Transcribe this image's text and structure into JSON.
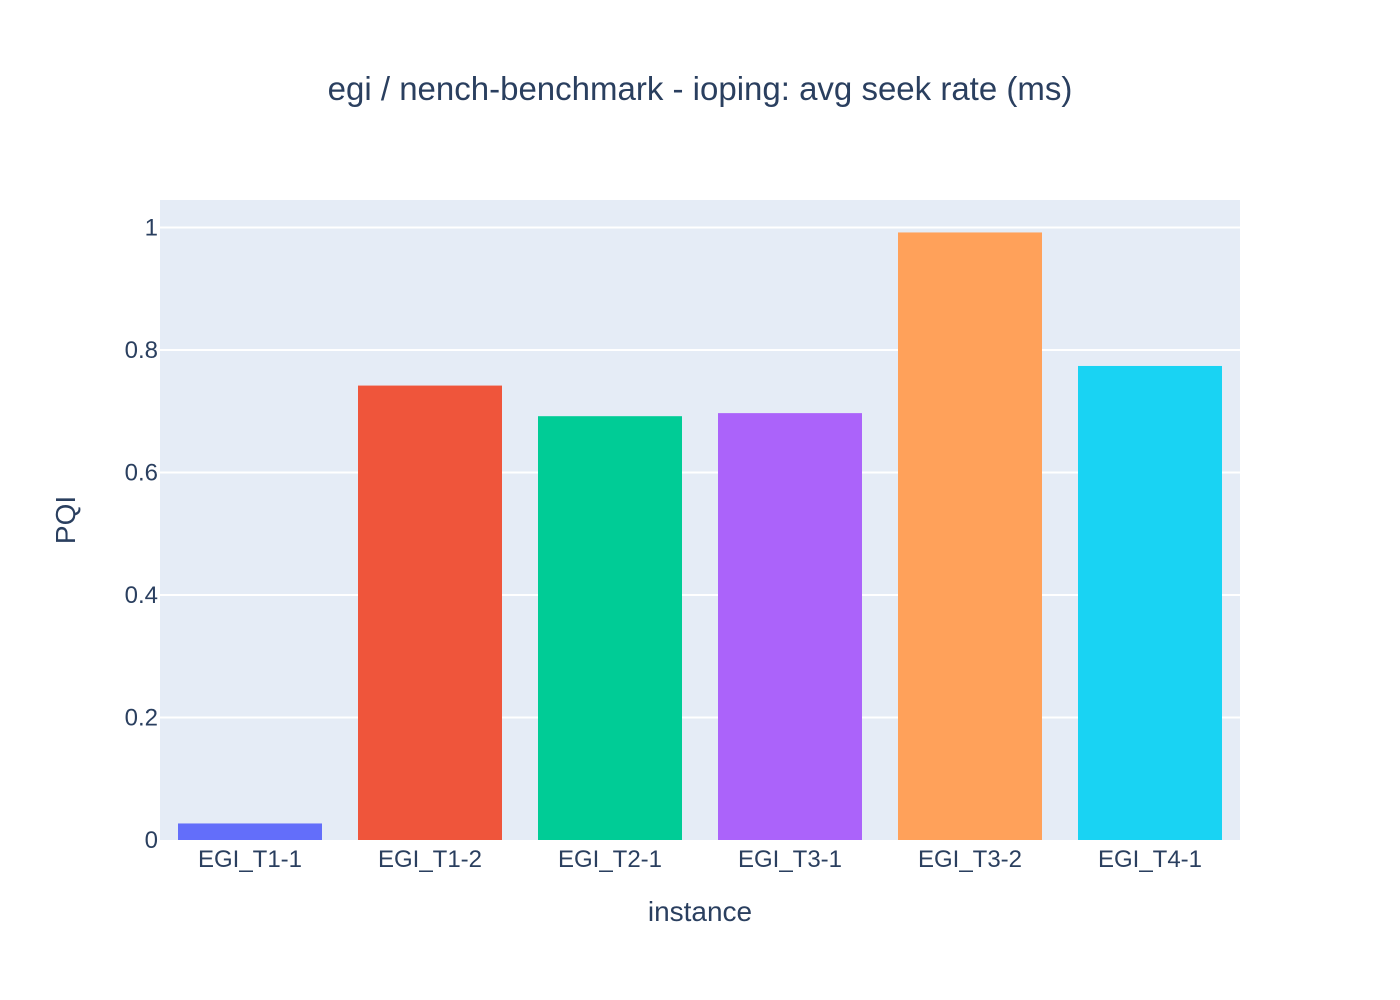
{
  "chart_data": {
    "type": "bar",
    "title": "egi / nench-benchmark - ioping: avg seek rate (ms)",
    "xlabel": "instance",
    "ylabel": "PQI",
    "categories": [
      "EGI_T1-1",
      "EGI_T1-2",
      "EGI_T2-1",
      "EGI_T3-1",
      "EGI_T3-2",
      "EGI_T4-1"
    ],
    "values": [
      0.027,
      0.742,
      0.692,
      0.697,
      0.992,
      0.774
    ],
    "bar_colors": [
      "#636efa",
      "#ef553b",
      "#00cc96",
      "#ab63fa",
      "#ffa15a",
      "#19d3f3"
    ],
    "ylim": [
      0,
      1.045
    ],
    "yticks": [
      {
        "value": 0,
        "label": "0"
      },
      {
        "value": 0.2,
        "label": "0.2"
      },
      {
        "value": 0.4,
        "label": "0.4"
      },
      {
        "value": 0.6,
        "label": "0.6"
      },
      {
        "value": 0.8,
        "label": "0.8"
      },
      {
        "value": 1,
        "label": "1"
      }
    ],
    "grid": true,
    "plot_background": "#e5ecf6",
    "gridline_color": "#ffffff",
    "text_color": "#2a3f5f"
  }
}
